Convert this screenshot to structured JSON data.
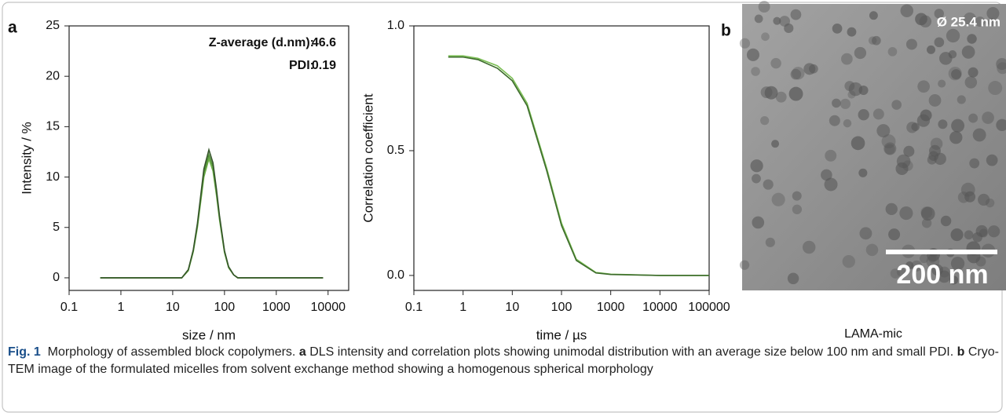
{
  "panel_labels": [
    "a",
    "b"
  ],
  "chart_data": [
    {
      "type": "line",
      "x_label": "size / nm",
      "y_label": "Intensity / %",
      "xscale": "log",
      "xlim": [
        0.1,
        25000
      ],
      "ylim": [
        -1.25,
        25
      ],
      "xticks": [
        0.1,
        1,
        10,
        100,
        1000,
        10000
      ],
      "yticks": [
        0,
        5,
        10,
        15,
        20,
        25
      ],
      "grid": false,
      "annotations": [
        {
          "label": "Z-average (d.nm):",
          "value": 46.6
        },
        {
          "label": "PDI:",
          "value": 0.19
        }
      ],
      "x": [
        0.4,
        1,
        5,
        10,
        15,
        20,
        25,
        30,
        40,
        50,
        60,
        70,
        80,
        100,
        120,
        150,
        180,
        200,
        500,
        1000,
        5000,
        8000
      ],
      "series": [
        {
          "color": "#6fb04a",
          "values": [
            0,
            0,
            0,
            0,
            0,
            0.7,
            2.6,
            5.0,
            10.0,
            11.8,
            10.6,
            8.2,
            5.8,
            2.5,
            1.0,
            0.3,
            0,
            0,
            0,
            0,
            0,
            0
          ]
        },
        {
          "color": "#4f8f34",
          "values": [
            0,
            0,
            0,
            0,
            0,
            0.8,
            2.7,
            5.2,
            10.4,
            12.2,
            11.0,
            8.5,
            6.0,
            2.6,
            1.1,
            0.3,
            0,
            0,
            0,
            0,
            0,
            0
          ]
        },
        {
          "color": "#35552a",
          "values": [
            0,
            0,
            0,
            0,
            0,
            0.8,
            2.8,
            5.4,
            10.8,
            12.7,
            11.4,
            8.8,
            6.2,
            2.7,
            1.1,
            0.3,
            0,
            0,
            0,
            0,
            0,
            0
          ]
        }
      ]
    },
    {
      "type": "line",
      "x_label": "time / µs",
      "y_label": "Correlation coefficient",
      "xscale": "log",
      "xlim": [
        0.1,
        100000
      ],
      "ylim": [
        -0.06,
        1.0
      ],
      "xticks": [
        0.1,
        1,
        10,
        100,
        1000,
        10000,
        100000
      ],
      "yticks": [
        {
          "value": 0,
          "label": "0.0"
        },
        0.5,
        {
          "value": 1,
          "label": "1.0"
        }
      ],
      "grid": false,
      "x": [
        0.5,
        1,
        2,
        5,
        10,
        20,
        50,
        100,
        200,
        500,
        1000,
        10000,
        100000
      ],
      "series": [
        {
          "color": "#7cbf55",
          "values": [
            0.88,
            0.88,
            0.87,
            0.84,
            0.79,
            0.69,
            0.43,
            0.21,
            0.065,
            0.012,
            0.005,
            0,
            0
          ]
        },
        {
          "color": "#3d6b2c",
          "values": [
            0.875,
            0.875,
            0.865,
            0.83,
            0.78,
            0.68,
            0.42,
            0.2,
            0.06,
            0.01,
            0.004,
            0,
            0
          ]
        }
      ]
    }
  ],
  "image": {
    "diameter_label": "Ø 25.4 nm",
    "scale_bar_label": "200 nm",
    "sample_label": "LAMA-mic"
  },
  "caption": {
    "label": "Fig. 1",
    "title": "Morphology of assembled block copolymers.",
    "a_label": "a",
    "a_text": "DLS intensity and correlation plots showing unimodal distribution with an average size below 100 nm and small PDI.",
    "b_label": "b",
    "b_text": "Cryo-TEM image of the formulated micelles from solvent exchange method showing a homogenous spherical morphology"
  }
}
